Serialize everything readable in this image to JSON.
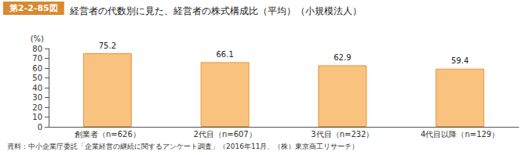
{
  "chart_data": {
    "type": "bar",
    "figure_label": "第2-2-85図",
    "title": "経営者の代数別に見た、経営者の株式構成比（平均）（小規模法人）",
    "y_label": "(%)",
    "categories": [
      "創業者（n=626）",
      "2代目（n=607）",
      "3代目（n=232）",
      "4代目以降（n=129）"
    ],
    "values": [
      75.2,
      66.1,
      62.9,
      59.4
    ],
    "color": "#f9c27e",
    "ylim": [
      0,
      80
    ],
    "yticks": [
      0,
      10,
      20,
      30,
      40,
      50,
      60,
      70,
      80
    ],
    "grid": false,
    "data_labels": true,
    "source": "資料：中小企業庁委託「企業経営の継続に関するアンケート調査」（2016年11月、（株）東京商工リサーチ）"
  }
}
